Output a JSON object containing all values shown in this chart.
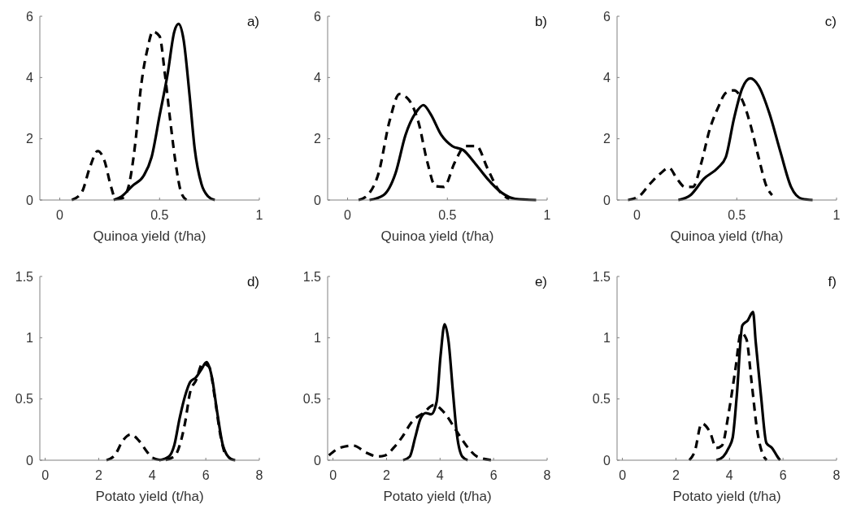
{
  "chart_data": [
    {
      "type": "line",
      "xlabel": "Quinoa yield (t/ha)",
      "annotations": [
        "a)"
      ],
      "xlim": [
        -0.1,
        1
      ],
      "xticks": [
        0,
        0.5,
        1
      ],
      "ylim": [
        0,
        6
      ],
      "yticks": [
        0,
        2,
        4,
        6
      ],
      "series": [
        {
          "color": "#000000",
          "line_style": "solid",
          "x": [
            0.27,
            0.31,
            0.365,
            0.42,
            0.46,
            0.5,
            0.54,
            0.574,
            0.595,
            0.62,
            0.65,
            0.676,
            0.71,
            0.743,
            0.777
          ],
          "values": [
            0,
            0.12,
            0.47,
            0.79,
            1.4,
            2.75,
            4.1,
            5.5,
            5.75,
            5.25,
            3.45,
            1.68,
            0.52,
            0.12,
            0
          ]
        },
        {
          "color": "#000000",
          "line_style": "dashed",
          "x": [
            0.06,
            0.11,
            0.15,
            0.19,
            0.223,
            0.257,
            0.28,
            0.31,
            0.34,
            0.38,
            0.405,
            0.44,
            0.466,
            0.5,
            0.527,
            0.554,
            0.58,
            0.608,
            0.635
          ],
          "values": [
            0,
            0.25,
            1.05,
            1.6,
            1.3,
            0.43,
            0.03,
            0.05,
            0.34,
            1.95,
            3.6,
            4.95,
            5.5,
            5.35,
            4.1,
            2.57,
            1.23,
            0.25,
            0
          ]
        }
      ]
    },
    {
      "type": "line",
      "xlabel": "Quinoa yield (t/ha)",
      "annotations": [
        "b)"
      ],
      "xlim": [
        -0.1,
        1
      ],
      "xticks": [
        0,
        0.5,
        1
      ],
      "ylim": [
        0,
        6
      ],
      "yticks": [
        0,
        2,
        4,
        6
      ],
      "series": [
        {
          "color": "#000000",
          "line_style": "solid",
          "x": [
            0.11,
            0.18,
            0.24,
            0.29,
            0.35,
            0.38,
            0.415,
            0.47,
            0.525,
            0.58,
            0.635,
            0.7,
            0.77,
            0.84,
            0.945
          ],
          "values": [
            0,
            0.16,
            0.87,
            2.12,
            2.93,
            3.1,
            2.82,
            2.12,
            1.76,
            1.63,
            1.23,
            0.7,
            0.25,
            0.04,
            0
          ]
        },
        {
          "color": "#000000",
          "line_style": "dashed",
          "x": [
            0.055,
            0.1,
            0.155,
            0.21,
            0.26,
            0.306,
            0.354,
            0.4,
            0.44,
            0.483,
            0.537,
            0.59,
            0.646,
            0.7,
            0.755,
            0.81
          ],
          "values": [
            0,
            0.16,
            0.87,
            2.57,
            3.46,
            3.28,
            2.57,
            1.23,
            0.45,
            0.43,
            1.23,
            1.76,
            1.76,
            1.05,
            0.34,
            0.03
          ]
        }
      ]
    },
    {
      "type": "line",
      "xlabel": "Quinoa yield (t/ha)",
      "annotations": [
        "c)"
      ],
      "xlim": [
        -0.1,
        1
      ],
      "xticks": [
        0,
        0.5,
        1
      ],
      "ylim": [
        0,
        6
      ],
      "yticks": [
        0,
        2,
        4,
        6
      ],
      "series": [
        {
          "color": "#000000",
          "line_style": "solid",
          "x": [
            0.207,
            0.268,
            0.336,
            0.405,
            0.445,
            0.486,
            0.527,
            0.568,
            0.609,
            0.663,
            0.718,
            0.772,
            0.827,
            0.88
          ],
          "values": [
            0,
            0.16,
            0.7,
            1.05,
            1.4,
            2.66,
            3.64,
            3.97,
            3.73,
            2.84,
            1.59,
            0.43,
            0.04,
            0
          ]
        },
        {
          "color": "#000000",
          "line_style": "dashed",
          "x": [
            -0.045,
            0.01,
            0.064,
            0.118,
            0.16,
            0.2,
            0.24,
            0.28,
            0.323,
            0.364,
            0.405,
            0.446,
            0.486,
            0.527,
            0.568,
            0.609,
            0.65,
            0.677
          ],
          "values": [
            0,
            0.12,
            0.52,
            0.87,
            1.05,
            0.7,
            0.43,
            0.43,
            1.23,
            2.3,
            3.0,
            3.5,
            3.58,
            3.27,
            2.47,
            1.4,
            0.43,
            0.16
          ]
        }
      ]
    },
    {
      "type": "line",
      "xlabel": "Potato yield (t/ha)",
      "annotations": [
        "d)"
      ],
      "xlim": [
        -0.2,
        8
      ],
      "xticks": [
        0,
        2,
        4,
        6,
        8
      ],
      "ylim": [
        0,
        1.5
      ],
      "yticks": [
        0,
        0.5,
        1,
        1.5
      ],
      "series": [
        {
          "color": "#000000",
          "line_style": "solid",
          "x": [
            4.26,
            4.62,
            4.82,
            5.02,
            5.22,
            5.42,
            5.63,
            5.83,
            6.03,
            6.23,
            6.43,
            6.64,
            6.94,
            7.1
          ],
          "values": [
            0,
            0.03,
            0.12,
            0.34,
            0.52,
            0.64,
            0.675,
            0.74,
            0.8,
            0.675,
            0.385,
            0.12,
            0.01,
            0
          ]
        },
        {
          "color": "#000000",
          "line_style": "dashed",
          "x": [
            2.29,
            2.6,
            2.9,
            3.2,
            3.5,
            3.8,
            4.0,
            4.41,
            4.82,
            5.22,
            5.42,
            5.63,
            5.88,
            6.13,
            6.33,
            6.54,
            6.74
          ],
          "values": [
            0,
            0.04,
            0.16,
            0.21,
            0.16,
            0.07,
            0.02,
            0,
            0.03,
            0.3,
            0.56,
            0.65,
            0.79,
            0.76,
            0.52,
            0.21,
            0.03
          ]
        }
      ]
    },
    {
      "type": "line",
      "xlabel": "Potato yield (t/ha)",
      "annotations": [
        "e)"
      ],
      "xlim": [
        -0.2,
        8
      ],
      "xticks": [
        0,
        2,
        4,
        6,
        8
      ],
      "ylim": [
        0,
        1.5
      ],
      "yticks": [
        0,
        0.5,
        1,
        1.5
      ],
      "series": [
        {
          "color": "#000000",
          "line_style": "solid",
          "x": [
            2.62,
            2.87,
            3.07,
            3.27,
            3.47,
            3.67,
            3.87,
            4.02,
            4.17,
            4.32,
            4.48,
            4.63,
            4.83,
            5.03
          ],
          "values": [
            0,
            0.03,
            0.185,
            0.34,
            0.385,
            0.375,
            0.475,
            0.855,
            1.11,
            0.965,
            0.56,
            0.21,
            0.03,
            0
          ]
        },
        {
          "color": "#000000",
          "line_style": "dashed",
          "x": [
            -0.15,
            0.25,
            0.75,
            1.26,
            1.66,
            1.96,
            2.26,
            2.57,
            2.97,
            3.37,
            3.77,
            4.17,
            4.58,
            4.98,
            5.38,
            5.94
          ],
          "values": [
            0.04,
            0.1,
            0.12,
            0.06,
            0.03,
            0.04,
            0.1,
            0.185,
            0.32,
            0.385,
            0.45,
            0.385,
            0.25,
            0.12,
            0.03,
            0
          ]
        }
      ]
    },
    {
      "type": "line",
      "xlabel": "Potato yield (t/ha)",
      "annotations": [
        "f)"
      ],
      "xlim": [
        -0.2,
        8
      ],
      "xticks": [
        0,
        2,
        4,
        6,
        8
      ],
      "ylim": [
        0,
        1.5
      ],
      "yticks": [
        0,
        0.5,
        1,
        1.5
      ],
      "series": [
        {
          "color": "#000000",
          "line_style": "solid",
          "x": [
            3.51,
            3.77,
            3.97,
            4.12,
            4.27,
            4.48,
            4.68,
            4.88,
            4.98,
            5.18,
            5.38,
            5.59,
            5.79,
            5.89
          ],
          "values": [
            0,
            0.03,
            0.1,
            0.185,
            0.52,
            1.1,
            1.14,
            1.21,
            0.965,
            0.52,
            0.14,
            0.1,
            0.03,
            0
          ]
        },
        {
          "color": "#000000",
          "line_style": "dashed",
          "x": [
            2.5,
            2.7,
            2.96,
            3.27,
            3.51,
            3.72,
            3.97,
            4.22,
            4.43,
            4.63,
            4.83,
            5.03,
            5.24,
            5.39
          ],
          "values": [
            0,
            0.07,
            0.3,
            0.23,
            0.1,
            0.12,
            0.385,
            0.74,
            1.04,
            0.99,
            0.63,
            0.25,
            0.05,
            0
          ]
        }
      ]
    }
  ]
}
